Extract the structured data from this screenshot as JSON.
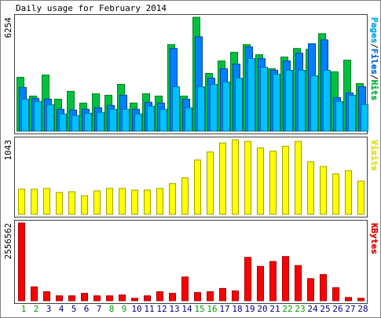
{
  "chart_data": {
    "type": "bar",
    "title": "Daily usage for February 2014",
    "categories": [
      "1",
      "2",
      "3",
      "4",
      "5",
      "6",
      "7",
      "8",
      "9",
      "10",
      "11",
      "12",
      "13",
      "14",
      "15",
      "16",
      "17",
      "18",
      "19",
      "20",
      "21",
      "22",
      "23",
      "24",
      "25",
      "26",
      "27",
      "28"
    ],
    "category_colors": [
      "#00a000",
      "#00a000",
      "#000080",
      "#000080",
      "#000080",
      "#000080",
      "#000080",
      "#00a000",
      "#00a000",
      "#000080",
      "#000080",
      "#000080",
      "#000080",
      "#000080",
      "#00a000",
      "#00a000",
      "#000080",
      "#000080",
      "#000080",
      "#000080",
      "#000080",
      "#00a000",
      "#00a000",
      "#000080",
      "#000080",
      "#000080",
      "#000080",
      "#000080"
    ],
    "legend_separator": "/",
    "panels": [
      {
        "ylim": [
          0,
          6254
        ],
        "yticks": [
          6254
        ],
        "series": [
          {
            "name": "Hits",
            "color": "#00c040",
            "values": [
              2956,
              1928,
              3084,
              1756,
              2185,
              1542,
              2056,
              1971,
              2570,
              1542,
              2056,
              1928,
              4755,
              1928,
              6254,
              3170,
              3856,
              4327,
              4755,
              4198,
              3427,
              4070,
              4541,
              4498,
              5355,
              3256,
              3898,
              2613
            ]
          },
          {
            "name": "Files",
            "color": "#0080ff",
            "values": [
              2399,
              1799,
              1756,
              1199,
              1156,
              1199,
              1285,
              1414,
              1971,
              1199,
              1585,
              1542,
              4541,
              1756,
              5184,
              2913,
              3427,
              3685,
              4626,
              3984,
              3341,
              3855,
              4284,
              4800,
              5013,
              1842,
              2099,
              2442
            ]
          },
          {
            "name": "Pages",
            "color": "#00c0ff",
            "values": [
              1756,
              1628,
              1456,
              942,
              856,
              985,
              1028,
              1199,
              1199,
              942,
              1371,
              1199,
              2441,
              1285,
              2441,
              2570,
              2699,
              2913,
              3984,
              3513,
              3128,
              3341,
              3341,
              3042,
              3341,
              1628,
              1971,
              1456
            ]
          }
        ]
      },
      {
        "ylim": [
          0,
          1043
        ],
        "yticks": [
          1043
        ],
        "series": [
          {
            "name": "Visits",
            "color": "#ffff00",
            "values": [
              352,
              352,
              363,
              306,
              317,
              261,
              329,
              363,
              363,
              340,
              340,
              363,
              431,
              510,
              760,
              873,
              998,
              1043,
              1021,
              930,
              885,
              953,
              1021,
              737,
              669,
              567,
              612,
              465
            ]
          }
        ]
      },
      {
        "ylim": [
          0,
          2556562
        ],
        "yticks": [
          2556562
        ],
        "series": [
          {
            "name": "KBytes",
            "color": "#ff0000",
            "values": [
              2556562,
              457487,
              296021,
              161466,
              161466,
              242199,
              161466,
              161466,
              188377,
              80733,
              161466,
              296021,
              242199,
              780419,
              269110,
              296021,
              403665,
              322932,
              1426283,
              1130262,
              1291728,
              1453194,
              1157173,
              726597,
              861152,
              430576,
              107644,
              80733
            ]
          }
        ]
      }
    ]
  }
}
